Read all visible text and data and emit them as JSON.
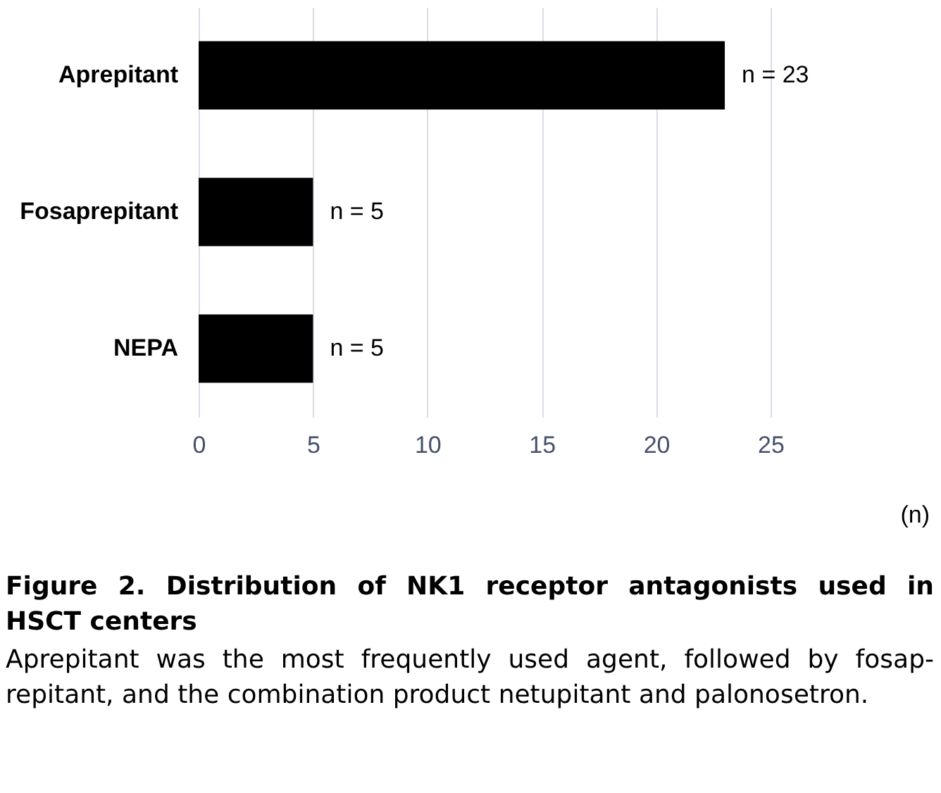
{
  "chart_data": {
    "type": "bar",
    "orientation": "horizontal",
    "title": "Figure 2. Distribution of NK1 receptor antagonists used in\nHSCT centers",
    "annotations": [
      "(n)",
      "Aprepitant was the most frequently used agent, followed by fosap-\nrepitant, and the combination product netupitant and palonosetron."
    ],
    "categories": [
      "Aprepitant",
      "Fosaprepitant",
      "NEPA"
    ],
    "values": [
      23,
      5,
      5
    ],
    "color": "#000000",
    "value_labels": [
      "n = 23",
      "n = 5",
      "n = 5"
    ],
    "xlim": [
      0,
      25
    ],
    "xticks": [
      0,
      5,
      10,
      15,
      20,
      25
    ],
    "grid": "x"
  }
}
